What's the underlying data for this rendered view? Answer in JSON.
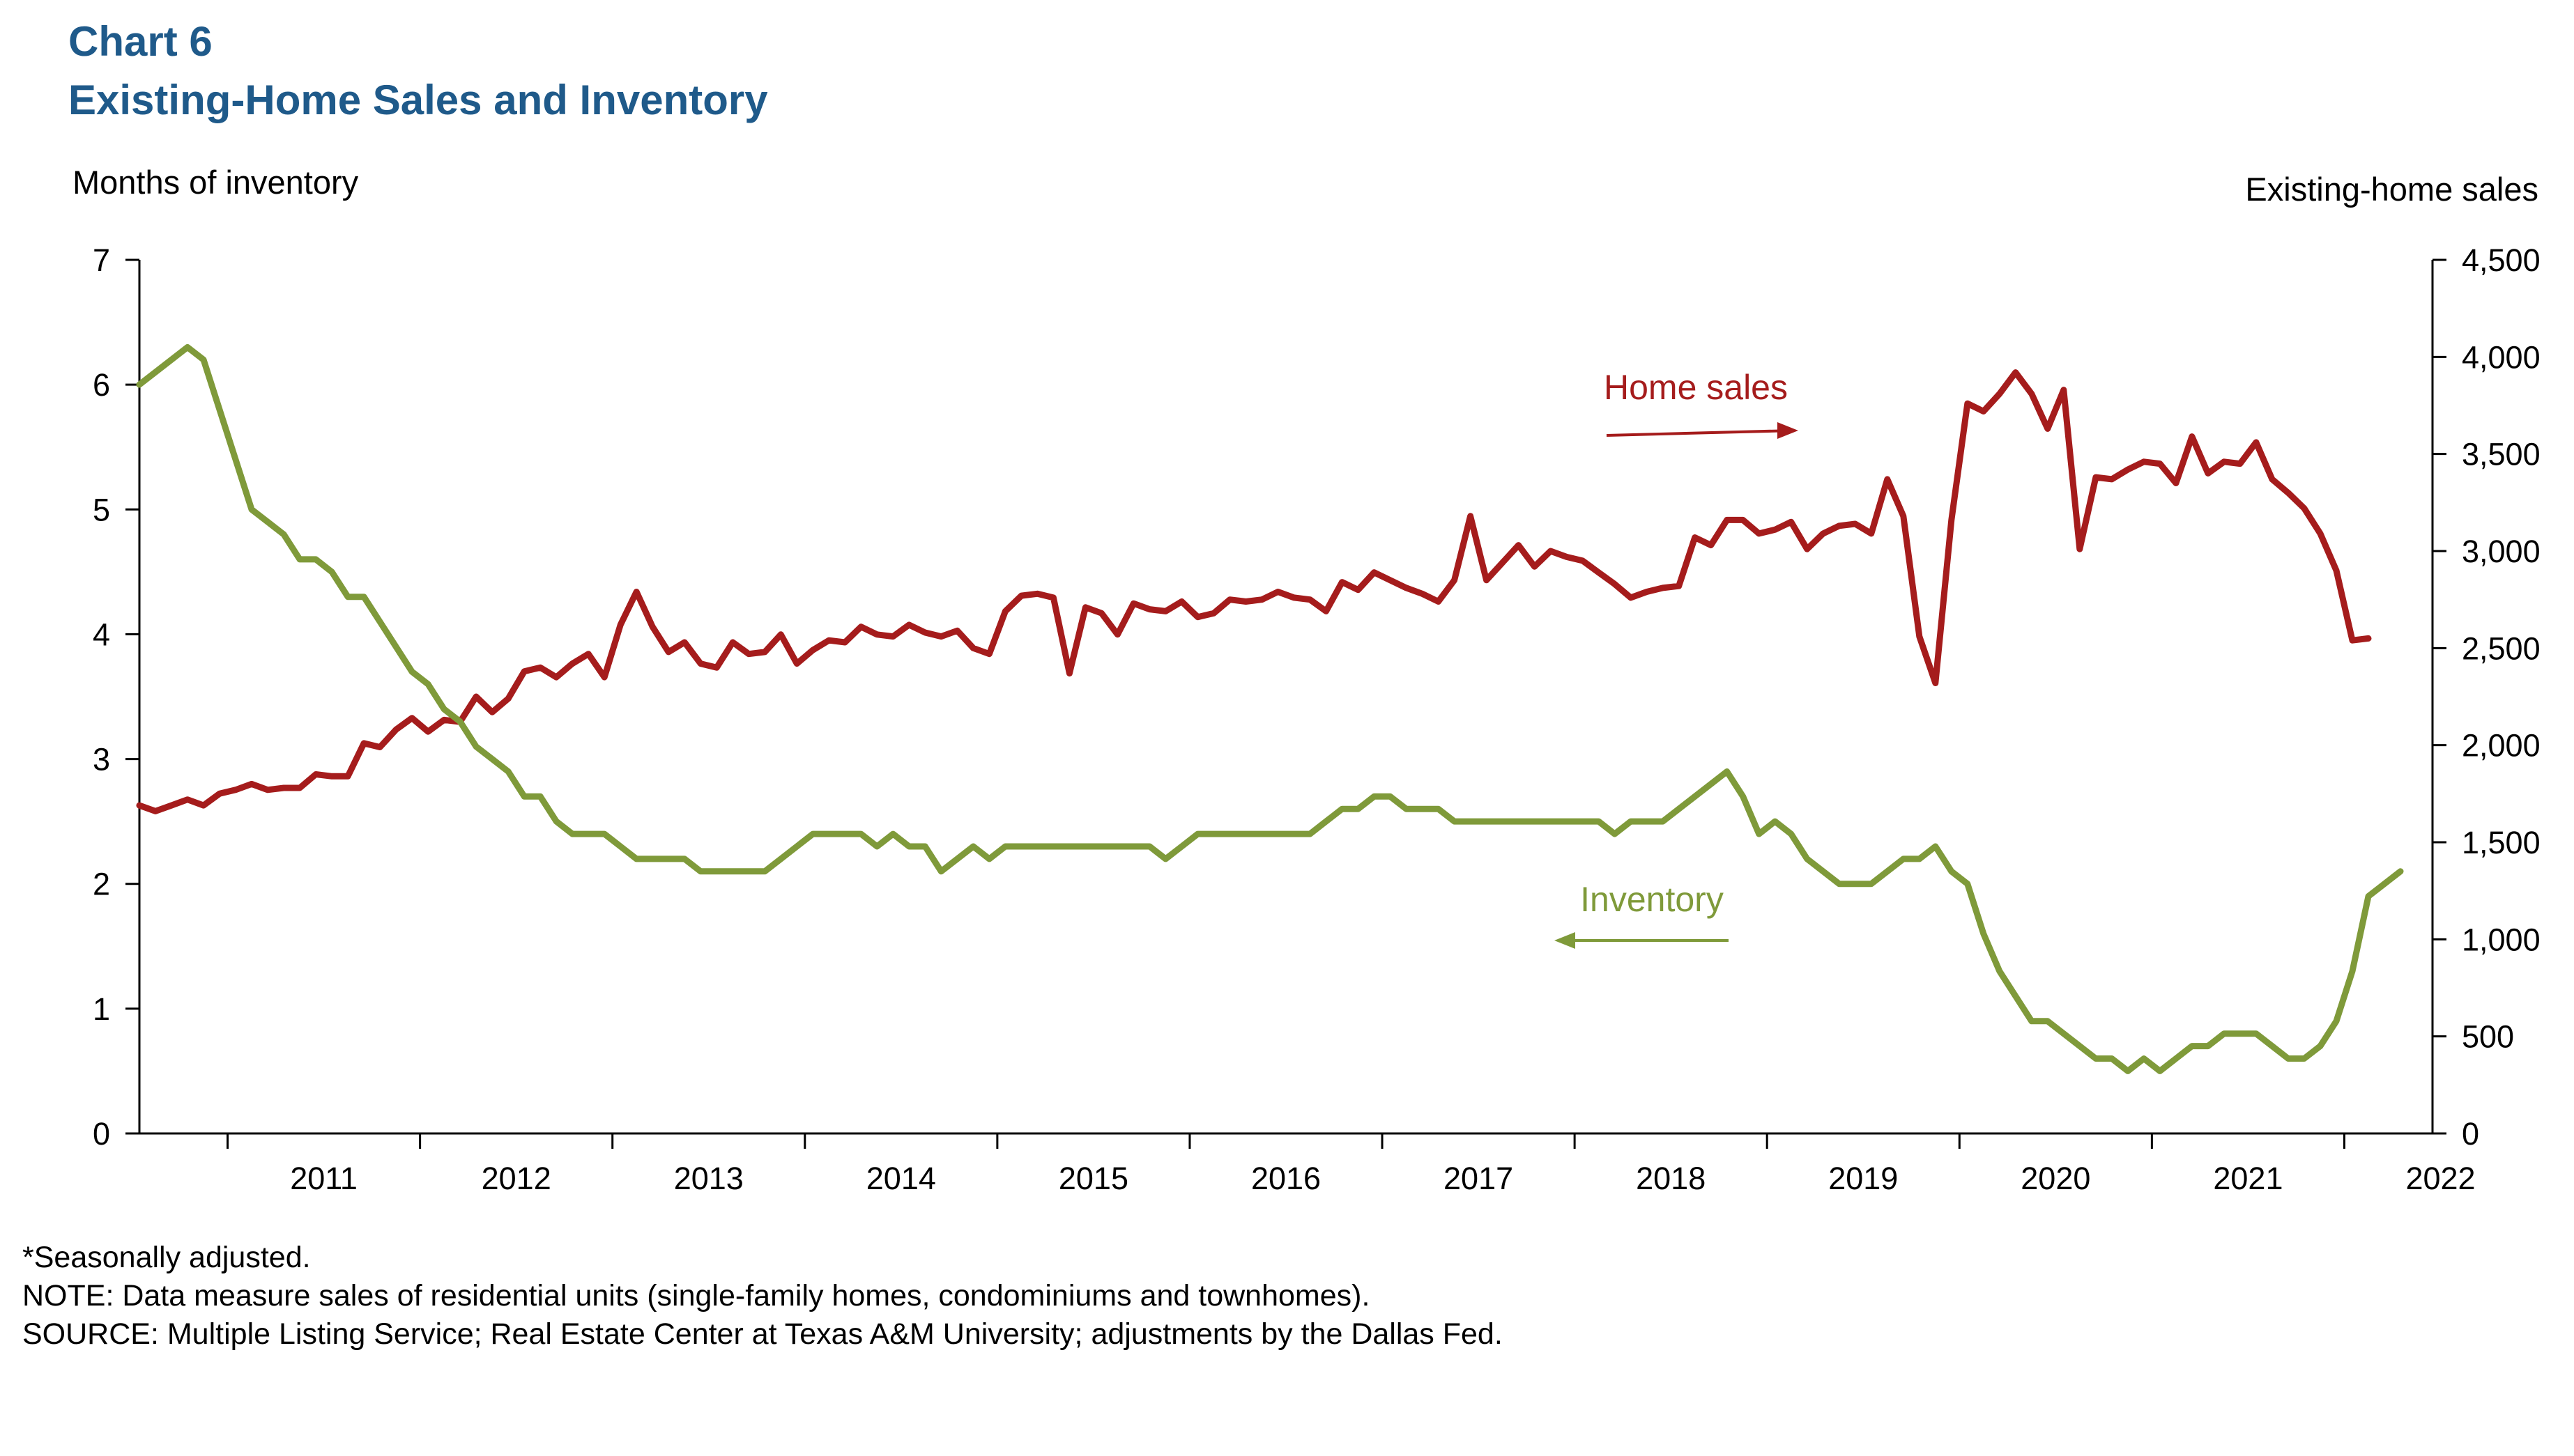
{
  "header": {
    "chart_number": "Chart 6",
    "title": "Existing-Home Sales and Inventory"
  },
  "notes": {
    "seasonal": "*Seasonally adjusted.",
    "note": "NOTE: Data measure sales of residential units (single-family homes, condominiums and townhomes).",
    "source": "SOURCE: Multiple Listing Service; Real Estate Center at Texas A&M University; adjustments by the Dallas Fed."
  },
  "colors": {
    "title": "#1f5a8a",
    "home_sales": "#a51c1c",
    "inventory": "#7f9a3a",
    "axis": "#000000"
  },
  "chart_data": {
    "type": "line",
    "left_axis": {
      "label": "Months of inventory",
      "min": 0,
      "max": 7,
      "step": 1,
      "ticks": [
        "0",
        "1",
        "2",
        "3",
        "4",
        "5",
        "6",
        "7"
      ]
    },
    "right_axis": {
      "label": "Existing-home sales",
      "min": 0,
      "max": 4500,
      "step": 500,
      "ticks": [
        "0",
        "500",
        "1,000",
        "1,500",
        "2,000",
        "2,500",
        "3,000",
        "3,500",
        "4,000",
        "4,500"
      ]
    },
    "x_axis": {
      "start": "2010-07",
      "end": "2022-06",
      "years": [
        "2011",
        "2012",
        "2013",
        "2014",
        "2015",
        "2016",
        "2017",
        "2018",
        "2019",
        "2020",
        "2021",
        "2022"
      ]
    },
    "annotations": [
      {
        "text": "Home sales",
        "series": "home_sales",
        "arrow": "right"
      },
      {
        "text": "Inventory",
        "series": "inventory",
        "arrow": "left"
      }
    ],
    "grid": false,
    "series": [
      {
        "key": "home_sales",
        "name": "Home sales",
        "axis": "right",
        "start": "2010-07",
        "values": [
          1690,
          1660,
          1690,
          1720,
          1690,
          1750,
          1770,
          1800,
          1770,
          1780,
          1780,
          1850,
          1840,
          1840,
          2010,
          1990,
          2080,
          2140,
          2070,
          2130,
          2120,
          2250,
          2170,
          2240,
          2380,
          2400,
          2350,
          2420,
          2470,
          2350,
          2620,
          2790,
          2610,
          2480,
          2530,
          2420,
          2400,
          2530,
          2470,
          2480,
          2570,
          2420,
          2490,
          2540,
          2530,
          2610,
          2570,
          2560,
          2620,
          2580,
          2560,
          2590,
          2500,
          2470,
          2690,
          2770,
          2780,
          2760,
          2370,
          2710,
          2680,
          2570,
          2730,
          2700,
          2690,
          2740,
          2660,
          2680,
          2750,
          2740,
          2750,
          2790,
          2760,
          2750,
          2690,
          2840,
          2800,
          2890,
          2850,
          2810,
          2780,
          2740,
          2850,
          3180,
          2850,
          2940,
          3030,
          2920,
          3000,
          2970,
          2950,
          2890,
          2830,
          2760,
          2790,
          2810,
          2820,
          3070,
          3030,
          3160,
          3160,
          3090,
          3110,
          3150,
          3010,
          3090,
          3130,
          3140,
          3090,
          3370,
          3180,
          2560,
          2320,
          3160,
          3760,
          3720,
          3810,
          3920,
          3810,
          3630,
          3830,
          3010,
          3380,
          3370,
          3420,
          3460,
          3450,
          3350,
          3590,
          3400,
          3460,
          3450,
          3560,
          3370,
          3300,
          3220,
          3090,
          2900,
          2540,
          2550
        ]
      },
      {
        "key": "inventory",
        "name": "Inventory",
        "axis": "left",
        "start": "2010-07",
        "values": [
          6.0,
          6.1,
          6.2,
          6.3,
          6.2,
          5.8,
          5.4,
          5.0,
          4.9,
          4.8,
          4.6,
          4.6,
          4.5,
          4.3,
          4.3,
          4.1,
          3.9,
          3.7,
          3.6,
          3.4,
          3.3,
          3.1,
          3.0,
          2.9,
          2.7,
          2.7,
          2.5,
          2.4,
          2.4,
          2.4,
          2.3,
          2.2,
          2.2,
          2.2,
          2.2,
          2.1,
          2.1,
          2.1,
          2.1,
          2.1,
          2.2,
          2.3,
          2.4,
          2.4,
          2.4,
          2.4,
          2.3,
          2.4,
          2.3,
          2.3,
          2.1,
          2.2,
          2.3,
          2.2,
          2.3,
          2.3,
          2.3,
          2.3,
          2.3,
          2.3,
          2.3,
          2.3,
          2.3,
          2.3,
          2.2,
          2.3,
          2.4,
          2.4,
          2.4,
          2.4,
          2.4,
          2.4,
          2.4,
          2.4,
          2.5,
          2.6,
          2.6,
          2.7,
          2.7,
          2.6,
          2.6,
          2.6,
          2.5,
          2.5,
          2.5,
          2.5,
          2.5,
          2.5,
          2.5,
          2.5,
          2.5,
          2.5,
          2.4,
          2.5,
          2.5,
          2.5,
          2.6,
          2.7,
          2.8,
          2.9,
          2.7,
          2.4,
          2.5,
          2.4,
          2.2,
          2.1,
          2.0,
          2.0,
          2.0,
          2.1,
          2.2,
          2.2,
          2.3,
          2.1,
          2.0,
          1.6,
          1.3,
          1.1,
          0.9,
          0.9,
          0.8,
          0.7,
          0.6,
          0.6,
          0.5,
          0.6,
          0.5,
          0.6,
          0.7,
          0.7,
          0.8,
          0.8,
          0.8,
          0.7,
          0.6,
          0.6,
          0.7,
          0.9,
          1.3,
          1.9,
          2.0,
          2.1
        ]
      }
    ]
  }
}
